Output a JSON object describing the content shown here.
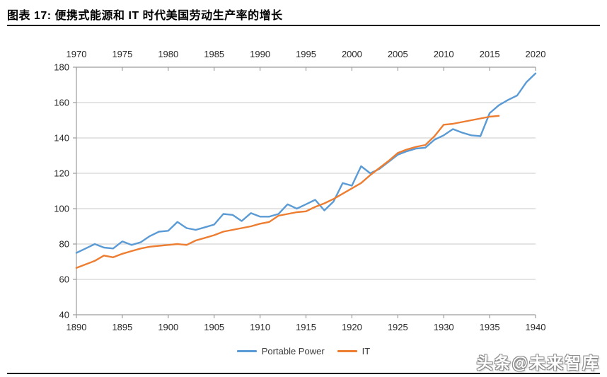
{
  "header": {
    "title": "图表 17: 便携式能源和 IT 时代美国劳动生产率的增长"
  },
  "watermark": {
    "text": "头条@未来智库"
  },
  "colors": {
    "portable_power": "#5B9BD5",
    "it": "#ED7D31",
    "gridline": "#C9C9C9",
    "axis": "#9C9C9C",
    "label": "#262626"
  },
  "chart_data": {
    "type": "line",
    "title": "便携式能源和 IT 时代美国劳动生产率的增长",
    "xlabel": "",
    "ylabel": "",
    "grid": true,
    "legend_position": "bottom-center",
    "y_axis": {
      "min": 40,
      "max": 180,
      "ticks": [
        180,
        160,
        140,
        120,
        100,
        80,
        60,
        40
      ]
    },
    "x_axis_bottom": {
      "min": 1890,
      "max": 1940,
      "ticks": [
        1890,
        1895,
        1900,
        1905,
        1910,
        1915,
        1920,
        1925,
        1930,
        1935,
        1940
      ]
    },
    "x_axis_top": {
      "min": 1970,
      "max": 2020,
      "ticks": [
        1970,
        1975,
        1980,
        1985,
        1990,
        1995,
        2000,
        2005,
        2010,
        2015,
        2020
      ]
    },
    "series": [
      {
        "name": "Portable Power",
        "color": "#5B9BD5",
        "axis": "bottom",
        "start_year": 1890,
        "values": [
          75,
          77.5,
          80,
          78,
          77.5,
          81.5,
          79.5,
          81,
          84.5,
          87,
          87.5,
          92.5,
          89,
          88,
          89.5,
          91,
          97,
          96.5,
          93,
          97.5,
          95.5,
          95.5,
          97,
          102.5,
          100,
          102.5,
          105,
          99,
          104,
          114.5,
          113,
          124,
          120,
          122.5,
          126.5,
          130.5,
          132.5,
          134,
          134.5,
          139,
          141.5,
          145,
          143,
          141.5,
          141,
          154,
          158.5,
          161.5,
          164,
          171.5,
          176.5
        ]
      },
      {
        "name": "IT",
        "color": "#ED7D31",
        "axis": "top",
        "start_year": 1970,
        "values": [
          66.5,
          68.5,
          70.5,
          73.5,
          72.5,
          74.5,
          76,
          77.5,
          78.5,
          79,
          79.5,
          80,
          79.5,
          82,
          83.5,
          85,
          87,
          88,
          89,
          90,
          91.5,
          92.5,
          96,
          97,
          98,
          98.5,
          101,
          103,
          105.5,
          108.5,
          111.5,
          114.5,
          119,
          123,
          127,
          131.5,
          133.5,
          135,
          136,
          141,
          147.5,
          148,
          149,
          150,
          151,
          152,
          152.5
        ]
      }
    ]
  }
}
